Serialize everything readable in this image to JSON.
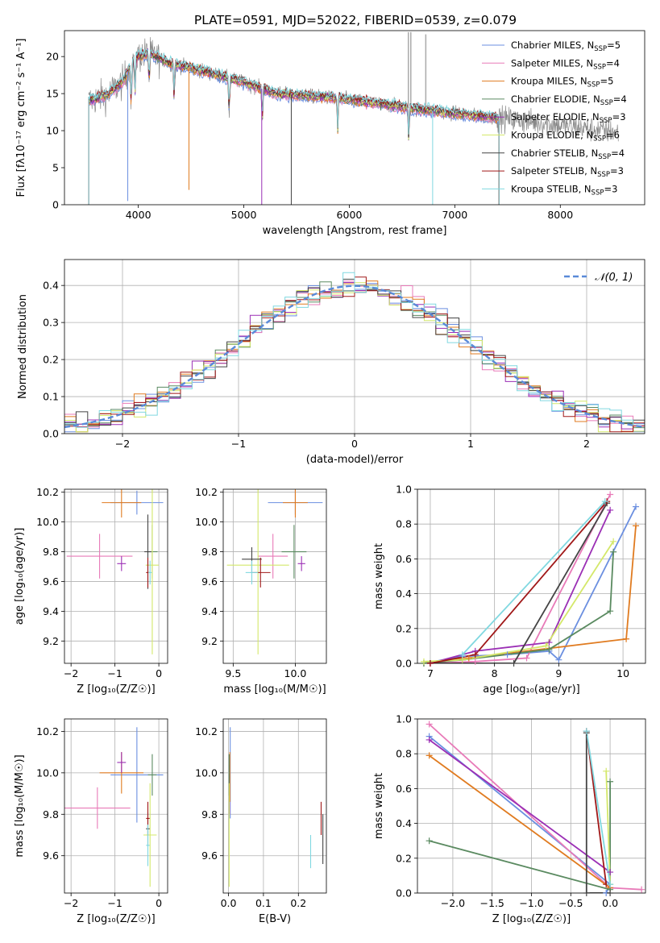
{
  "figure": {
    "title": "PLATE=0591, MJD=52022, FIBERID=0539, z=0.079"
  },
  "palette": {
    "Chabrier MILES": "#6b8fe0",
    "Salpeter MILES": "#e87ab8",
    "Kroupa MILES": "#e07b20",
    "Chabrier ELODIE": "#5a8a60",
    "Salpeter ELODIE": "#9b2fb5",
    "Kroupa ELODIE": "#d4e86a",
    "Chabrier STELIB": "#444444",
    "Salpeter STELIB": "#a01818",
    "Kroupa STELIB": "#80d8e0",
    "data": "#888888",
    "gaussian": "#5a8ad8"
  },
  "chart_data": [
    {
      "id": "spectrum",
      "type": "line",
      "xlabel": "wavelength [Angstrom, rest frame]",
      "ylabel": "Flux [fλ10⁻¹⁷ erg cm⁻² s⁻¹ A⁻¹]",
      "xlim": [
        3300,
        8800
      ],
      "ylim": [
        0,
        23.5
      ],
      "xticks": [
        4000,
        5000,
        6000,
        7000,
        8000
      ],
      "yticks": [
        0,
        5,
        10,
        15,
        20
      ],
      "legend": "top-right",
      "legend_entries": [
        {
          "key": "Chabrier MILES",
          "base": "Chabrier MILES, N",
          "sub": "SSP",
          "tail": "=5"
        },
        {
          "key": "Salpeter MILES",
          "base": "Salpeter MILES, N",
          "sub": "SSP",
          "tail": "=4"
        },
        {
          "key": "Kroupa MILES",
          "base": "Kroupa MILES, N",
          "sub": "SSP",
          "tail": "=5"
        },
        {
          "key": "Chabrier ELODIE",
          "base": "Chabrier ELODIE, N",
          "sub": "SSP",
          "tail": "=4"
        },
        {
          "key": "Salpeter ELODIE",
          "base": "Salpeter ELODIE, N",
          "sub": "SSP",
          "tail": "=3"
        },
        {
          "key": "Kroupa ELODIE",
          "base": "Kroupa ELODIE, N",
          "sub": "SSP",
          "tail": "=6"
        },
        {
          "key": "Chabrier STELIB",
          "base": "Chabrier STELIB, N",
          "sub": "SSP",
          "tail": "=4"
        },
        {
          "key": "Salpeter STELIB",
          "base": "Salpeter STELIB, N",
          "sub": "SSP",
          "tail": "=3"
        },
        {
          "key": "Kroupa STELIB",
          "base": "Kroupa STELIB, N",
          "sub": "SSP",
          "tail": "=3"
        }
      ],
      "continuum": [
        [
          3530,
          14.0
        ],
        [
          3700,
          14.8
        ],
        [
          3850,
          16.5
        ],
        [
          3950,
          19.5
        ],
        [
          4000,
          20.0
        ],
        [
          4100,
          20.5
        ],
        [
          4300,
          19.0
        ],
        [
          4500,
          18.5
        ],
        [
          4800,
          17.3
        ],
        [
          5000,
          16.5
        ],
        [
          5300,
          15.0
        ],
        [
          5600,
          14.7
        ],
        [
          6000,
          14.2
        ],
        [
          6300,
          13.6
        ],
        [
          6600,
          13.0
        ],
        [
          6900,
          12.5
        ],
        [
          7200,
          12.0
        ],
        [
          7420,
          11.7
        ]
      ],
      "absorption": [
        [
          3933,
          2.0
        ],
        [
          3968,
          6.0
        ],
        [
          4102,
          8.0
        ],
        [
          4340,
          6.0
        ],
        [
          4861,
          4.0
        ],
        [
          5175,
          3.0
        ],
        [
          5890,
          3.0
        ],
        [
          6563,
          2.0
        ]
      ],
      "spikes": [
        [
          3900,
          0.5
        ],
        [
          4480,
          2.0
        ],
        [
          5170,
          0.0
        ],
        [
          5450,
          0.0
        ],
        [
          6790,
          0.0
        ]
      ],
      "emission": [
        [
          6560,
          23.3
        ],
        [
          6583,
          23.3
        ],
        [
          6725,
          23.0
        ]
      ],
      "model_range": [
        3530,
        7420
      ],
      "data_range": [
        3530,
        8550
      ]
    },
    {
      "id": "residuals",
      "type": "histogram",
      "xlabel": "(data-model)/error",
      "ylabel": "Normed distribution",
      "xlim": [
        -2.5,
        2.5
      ],
      "ylim": [
        0,
        0.47
      ],
      "xticks": [
        -2,
        -1,
        0,
        1,
        2
      ],
      "yticks": [
        0.0,
        0.1,
        0.2,
        0.3,
        0.4
      ],
      "bin_width": 0.1,
      "legend": "top-right",
      "gaussian_label": "𝒩(0, 1)"
    },
    {
      "id": "age-vs-Z",
      "type": "scatter",
      "xlabel": "Z [log₁₀(Z/Z☉)]",
      "ylabel": "age  [log₁₀(age/yr)]",
      "xlim": [
        -2.15,
        0.2
      ],
      "ylim": [
        9.05,
        10.22
      ],
      "xticks": [
        -2,
        -1,
        0
      ],
      "yticks": [
        9.2,
        9.4,
        9.6,
        9.8,
        10.0,
        10.2
      ],
      "points": [
        {
          "model": "Chabrier MILES",
          "x": -0.5,
          "y": 10.13,
          "xerr": 0.6,
          "yerr": 0.08
        },
        {
          "model": "Salpeter MILES",
          "x": -1.35,
          "y": 9.77,
          "xerr": 0.75,
          "yerr": 0.15
        },
        {
          "model": "Kroupa MILES",
          "x": -0.85,
          "y": 10.13,
          "xerr": 0.45,
          "yerr": 0.1
        },
        {
          "model": "Chabrier ELODIE",
          "x": -0.15,
          "y": 9.8,
          "xerr": 0.12,
          "yerr": 0.18
        },
        {
          "model": "Salpeter ELODIE",
          "x": -0.85,
          "y": 9.72,
          "xerr": 0.1,
          "yerr": 0.05
        },
        {
          "model": "Kroupa ELODIE",
          "x": -0.15,
          "y": 9.71,
          "xerr": 0.15,
          "yerr": 0.6
        },
        {
          "model": "Chabrier STELIB",
          "x": -0.25,
          "y": 9.8,
          "xerr": 0.08,
          "yerr": 0.25
        },
        {
          "model": "Salpeter STELIB",
          "x": -0.25,
          "y": 9.66,
          "xerr": 0.04,
          "yerr": 0.1
        },
        {
          "model": "Kroupa STELIB",
          "x": -0.2,
          "y": 9.66,
          "xerr": 0.04,
          "yerr": 0.08
        }
      ]
    },
    {
      "id": "age-vs-mass",
      "type": "scatter",
      "xlabel": "mass [log₁₀(M/M☉)]",
      "ylabel": "",
      "xlim": [
        9.42,
        10.25
      ],
      "ylim": [
        9.05,
        10.22
      ],
      "xticks": [
        9.5,
        10.0
      ],
      "yticks": [
        9.2,
        9.4,
        9.6,
        9.8,
        10.0,
        10.2
      ],
      "points": [
        {
          "model": "Chabrier MILES",
          "x": 10.0,
          "y": 10.13,
          "xerr": 0.22,
          "yerr": 0.08
        },
        {
          "model": "Salpeter MILES",
          "x": 9.82,
          "y": 9.77,
          "xerr": 0.12,
          "yerr": 0.15
        },
        {
          "model": "Kroupa MILES",
          "x": 10.0,
          "y": 10.13,
          "xerr": 0.1,
          "yerr": 0.1
        },
        {
          "model": "Chabrier ELODIE",
          "x": 9.99,
          "y": 9.8,
          "xerr": 0.1,
          "yerr": 0.18
        },
        {
          "model": "Salpeter ELODIE",
          "x": 10.05,
          "y": 9.72,
          "xerr": 0.03,
          "yerr": 0.05
        },
        {
          "model": "Kroupa ELODIE",
          "x": 9.7,
          "y": 9.71,
          "xerr": 0.25,
          "yerr": 0.6
        },
        {
          "model": "Chabrier STELIB",
          "x": 9.65,
          "y": 9.75,
          "xerr": 0.08,
          "yerr": 0.08
        },
        {
          "model": "Salpeter STELIB",
          "x": 9.72,
          "y": 9.66,
          "xerr": 0.08,
          "yerr": 0.1
        },
        {
          "model": "Kroupa STELIB",
          "x": 9.65,
          "y": 9.66,
          "xerr": 0.05,
          "yerr": 0.08
        }
      ]
    },
    {
      "id": "massweight-vs-age",
      "type": "line",
      "xlabel": "age  [log₁₀(age/yr)]",
      "ylabel": "mass weight",
      "xlim": [
        6.8,
        10.35
      ],
      "ylim": [
        0,
        1.0
      ],
      "xticks": [
        7,
        8,
        9,
        10
      ],
      "yticks": [
        0.0,
        0.2,
        0.4,
        0.6,
        0.8,
        1.0
      ],
      "series": [
        {
          "model": "Chabrier MILES",
          "points": [
            [
              6.9,
              0.0
            ],
            [
              7.5,
              0.04
            ],
            [
              8.2,
              0.05
            ],
            [
              8.85,
              0.07
            ],
            [
              9.0,
              0.02
            ],
            [
              10.2,
              0.9
            ]
          ]
        },
        {
          "model": "Salpeter MILES",
          "points": [
            [
              7.0,
              0.0
            ],
            [
              7.7,
              0.01
            ],
            [
              8.5,
              0.03
            ],
            [
              9.8,
              0.97
            ]
          ]
        },
        {
          "model": "Kroupa MILES",
          "points": [
            [
              6.9,
              0.0
            ],
            [
              7.6,
              0.03
            ],
            [
              10.05,
              0.14
            ],
            [
              10.2,
              0.79
            ]
          ]
        },
        {
          "model": "Chabrier ELODIE",
          "points": [
            [
              6.9,
              0.0
            ],
            [
              7.5,
              0.02
            ],
            [
              8.85,
              0.08
            ],
            [
              9.8,
              0.3
            ],
            [
              9.85,
              0.64
            ]
          ]
        },
        {
          "model": "Salpeter ELODIE",
          "points": [
            [
              7.0,
              0.0
            ],
            [
              7.7,
              0.07
            ],
            [
              8.85,
              0.12
            ],
            [
              9.8,
              0.88
            ]
          ]
        },
        {
          "model": "Kroupa ELODIE",
          "points": [
            [
              6.9,
              0.01
            ],
            [
              7.5,
              0.02
            ],
            [
              8.8,
              0.1
            ],
            [
              9.85,
              0.7
            ]
          ]
        },
        {
          "model": "Chabrier STELIB",
          "points": [
            [
              7.0,
              0.0
            ],
            [
              8.3,
              0.0
            ],
            [
              9.75,
              0.92
            ]
          ]
        },
        {
          "model": "Salpeter STELIB",
          "points": [
            [
              7.0,
              0.0
            ],
            [
              7.7,
              0.05
            ],
            [
              9.75,
              0.93
            ]
          ]
        },
        {
          "model": "Kroupa STELIB",
          "points": [
            [
              7.5,
              0.05
            ],
            [
              9.72,
              0.93
            ]
          ]
        }
      ]
    },
    {
      "id": "mass-vs-Z",
      "type": "scatter",
      "xlabel": "Z [log₁₀(Z/Z☉)]",
      "ylabel": "mass [log₁₀(M/M☉)]",
      "xlim": [
        -2.15,
        0.2
      ],
      "ylim": [
        9.42,
        10.26
      ],
      "xticks": [
        -2,
        -1,
        0
      ],
      "yticks": [
        9.6,
        9.8,
        10.0,
        10.2
      ],
      "points": [
        {
          "model": "Chabrier MILES",
          "x": -0.5,
          "y": 9.99,
          "xerr": 0.6,
          "yerr": 0.23
        },
        {
          "model": "Salpeter MILES",
          "x": -1.4,
          "y": 9.83,
          "xerr": 0.75,
          "yerr": 0.1
        },
        {
          "model": "Kroupa MILES",
          "x": -0.85,
          "y": 10.0,
          "xerr": 0.5,
          "yerr": 0.1
        },
        {
          "model": "Chabrier ELODIE",
          "x": -0.15,
          "y": 9.99,
          "xerr": 0.1,
          "yerr": 0.1
        },
        {
          "model": "Salpeter ELODIE",
          "x": -0.85,
          "y": 10.05,
          "xerr": 0.1,
          "yerr": 0.05
        },
        {
          "model": "Kroupa ELODIE",
          "x": -0.2,
          "y": 9.7,
          "xerr": 0.15,
          "yerr": 0.25
        },
        {
          "model": "Chabrier STELIB",
          "x": -0.25,
          "y": 9.73,
          "xerr": 0.04,
          "yerr": 0.08
        },
        {
          "model": "Salpeter STELIB",
          "x": -0.25,
          "y": 9.78,
          "xerr": 0.04,
          "yerr": 0.08
        },
        {
          "model": "Kroupa STELIB",
          "x": -0.25,
          "y": 9.65,
          "xerr": 0.04,
          "yerr": 0.1
        }
      ]
    },
    {
      "id": "mass-vs-EBV",
      "type": "scatter",
      "xlabel": "E(B-V)",
      "ylabel": "",
      "xlim": [
        -0.015,
        0.28
      ],
      "ylim": [
        9.42,
        10.26
      ],
      "xticks": [
        0.0,
        0.1,
        0.2
      ],
      "yticks": [
        9.6,
        9.8,
        10.0,
        10.2
      ],
      "points": [
        {
          "model": "Chabrier MILES",
          "x": 0.005,
          "y": 10.0,
          "xerr": 0.0,
          "yerr": 0.22
        },
        {
          "model": "Salpeter MILES",
          "x": 0.003,
          "y": 9.92,
          "xerr": 0.0,
          "yerr": 0.12
        },
        {
          "model": "Kroupa MILES",
          "x": 0.004,
          "y": 9.98,
          "xerr": 0.0,
          "yerr": 0.12
        },
        {
          "model": "Chabrier ELODIE",
          "x": 0.002,
          "y": 9.99,
          "xerr": 0.0,
          "yerr": 0.1
        },
        {
          "model": "Kroupa ELODIE",
          "x": 0.002,
          "y": 9.7,
          "xerr": 0.0,
          "yerr": 0.25
        },
        {
          "model": "Chabrier STELIB",
          "x": 0.27,
          "y": 9.68,
          "xerr": 0.0,
          "yerr": 0.12
        },
        {
          "model": "Salpeter STELIB",
          "x": 0.265,
          "y": 9.78,
          "xerr": 0.0,
          "yerr": 0.08
        },
        {
          "model": "Kroupa STELIB",
          "x": 0.235,
          "y": 9.62,
          "xerr": 0.0,
          "yerr": 0.08
        }
      ]
    },
    {
      "id": "massweight-vs-Z",
      "type": "line",
      "xlabel": "Z [log₁₀(Z/Z☉)]",
      "ylabel": "mass weight",
      "xlim": [
        -2.45,
        0.45
      ],
      "ylim": [
        0,
        1.0
      ],
      "xticks": [
        -2.0,
        -1.5,
        -1.0,
        -0.5,
        0.0
      ],
      "yticks": [
        0.0,
        0.2,
        0.4,
        0.6,
        0.8,
        1.0
      ],
      "series": [
        {
          "model": "Chabrier MILES",
          "points": [
            [
              -2.3,
              0.9
            ],
            [
              0.0,
              0.05
            ],
            [
              -0.05,
              0.0
            ]
          ]
        },
        {
          "model": "Salpeter MILES",
          "points": [
            [
              -2.3,
              0.97
            ],
            [
              0.0,
              0.03
            ],
            [
              0.4,
              0.02
            ]
          ]
        },
        {
          "model": "Kroupa MILES",
          "points": [
            [
              -2.3,
              0.79
            ],
            [
              0.0,
              0.03
            ]
          ]
        },
        {
          "model": "Chabrier ELODIE",
          "points": [
            [
              -2.3,
              0.3
            ],
            [
              0.0,
              0.02
            ],
            [
              0.0,
              0.64
            ]
          ]
        },
        {
          "model": "Salpeter ELODIE",
          "points": [
            [
              -2.3,
              0.88
            ],
            [
              0.0,
              0.12
            ]
          ]
        },
        {
          "model": "Kroupa ELODIE",
          "points": [
            [
              -0.05,
              0.7
            ],
            [
              0.0,
              0.05
            ]
          ]
        },
        {
          "model": "Chabrier STELIB",
          "points": [
            [
              -0.3,
              0.92
            ],
            [
              -0.3,
              0.0
            ],
            [
              0.0,
              0.0
            ]
          ]
        },
        {
          "model": "Salpeter STELIB",
          "points": [
            [
              -0.3,
              0.93
            ],
            [
              -0.05,
              0.05
            ]
          ]
        },
        {
          "model": "Kroupa STELIB",
          "points": [
            [
              -0.3,
              0.93
            ],
            [
              0.0,
              0.05
            ]
          ]
        }
      ]
    }
  ]
}
